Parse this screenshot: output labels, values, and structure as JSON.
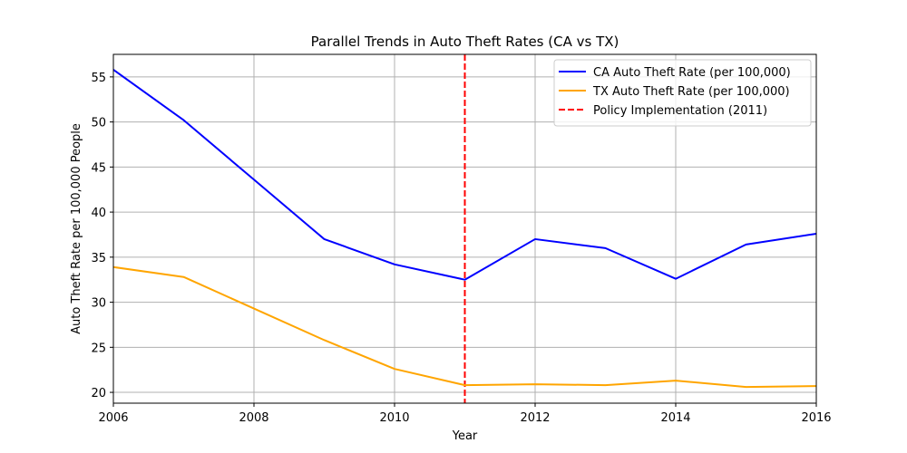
{
  "chart_data": {
    "type": "line",
    "title": "Parallel Trends in Auto Theft Rates (CA vs TX)",
    "xlabel": "Year",
    "ylabel": "Auto Theft Rate per 100,000 People",
    "xlim": [
      2006,
      2016
    ],
    "ylim": [
      18.8,
      57.5
    ],
    "xticks": [
      2006,
      2008,
      2010,
      2012,
      2014,
      2016
    ],
    "yticks": [
      20,
      25,
      30,
      35,
      40,
      45,
      50,
      55
    ],
    "grid": true,
    "legend_position": "top-right",
    "x": [
      2006,
      2007,
      2008,
      2009,
      2010,
      2011,
      2012,
      2013,
      2014,
      2015,
      2016
    ],
    "series": [
      {
        "name": "CA Auto Theft Rate (per 100,000)",
        "color": "#0000ff",
        "style": "solid",
        "values": [
          55.8,
          50.2,
          43.6,
          37.0,
          34.2,
          32.5,
          37.0,
          36.0,
          32.6,
          36.4,
          37.6
        ]
      },
      {
        "name": "TX Auto Theft Rate (per 100,000)",
        "color": "#ffa500",
        "style": "solid",
        "values": [
          33.9,
          32.8,
          29.3,
          25.8,
          22.6,
          20.8,
          20.9,
          20.8,
          21.3,
          20.6,
          20.7
        ]
      }
    ],
    "vlines": [
      {
        "name": "Policy Implementation (2011)",
        "x": 2011,
        "color": "#ff0000",
        "style": "dashed"
      }
    ]
  }
}
